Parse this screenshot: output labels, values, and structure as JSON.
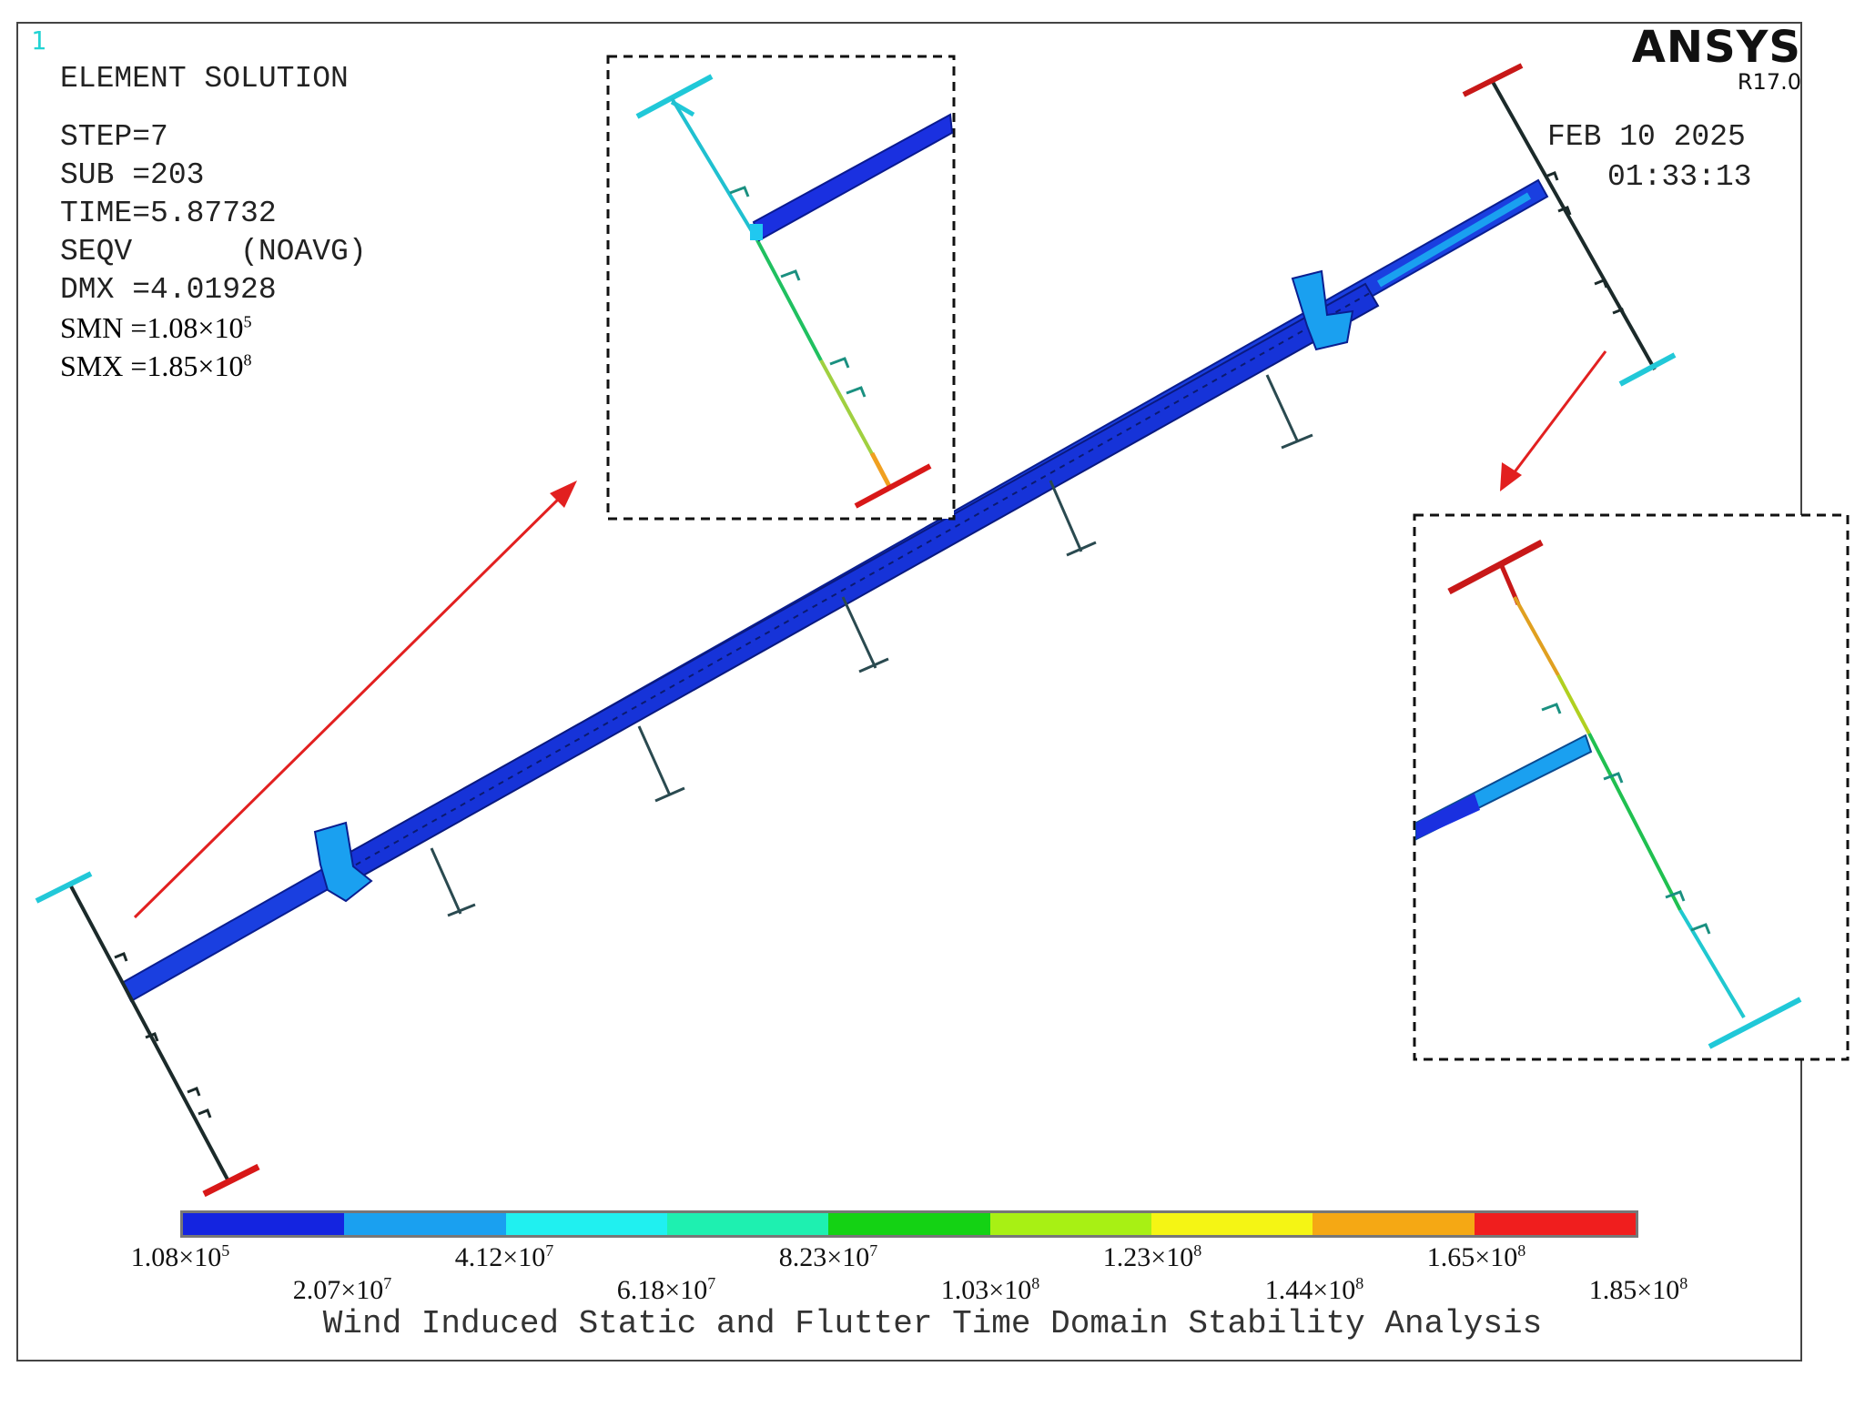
{
  "window_number": "1",
  "brand": {
    "name": "ANSYS",
    "version": "R17.0"
  },
  "date": "FEB 10 2025",
  "time": "01:33:13",
  "info": {
    "title": "ELEMENT SOLUTION",
    "step": "STEP=7",
    "sub": "SUB =203",
    "time": "TIME=5.87732",
    "seqv": "SEQV      (NOAVG)",
    "dmx": "DMX =4.01928",
    "smn": {
      "label": "SMN =1.08×10",
      "exp": "5"
    },
    "smx": {
      "label": "SMX =1.85×10",
      "exp": "8"
    }
  },
  "legend": {
    "colors": [
      "#1424e0",
      "#1aa0f0",
      "#20f0f0",
      "#1ef0b0",
      "#14d214",
      "#a8f014",
      "#f5f514",
      "#f5a814",
      "#f01e1e"
    ],
    "labels": [
      {
        "mantissa": "1.08×10",
        "exp": "5"
      },
      {
        "mantissa": "2.07×10",
        "exp": "7"
      },
      {
        "mantissa": "4.12×10",
        "exp": "7"
      },
      {
        "mantissa": "6.18×10",
        "exp": "7"
      },
      {
        "mantissa": "8.23×10",
        "exp": "7"
      },
      {
        "mantissa": "1.03×10",
        "exp": "8"
      },
      {
        "mantissa": "1.23×10",
        "exp": "8"
      },
      {
        "mantissa": "1.44×10",
        "exp": "8"
      },
      {
        "mantissa": "1.65×10",
        "exp": "8"
      },
      {
        "mantissa": "1.85×10",
        "exp": "8"
      }
    ]
  },
  "caption": "Wind Induced Static and Flutter Time Domain Stability Analysis"
}
